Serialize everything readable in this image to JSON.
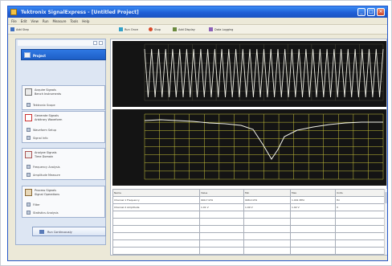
{
  "window": {
    "title": "Tektronix SignalExpress - [Untitled Project]"
  },
  "menu": [
    "File",
    "Edit",
    "View",
    "Run",
    "Measure",
    "Tools",
    "Help"
  ],
  "toolbar": [
    {
      "label": "Add Step",
      "icon": "add-step-icon"
    },
    {
      "label": "Run Once",
      "icon": "run-once-icon"
    },
    {
      "label": "Stop",
      "icon": "stop-icon"
    },
    {
      "label": "Add Display",
      "icon": "add-display-icon"
    },
    {
      "label": "Data Logging",
      "icon": "data-logging-icon"
    }
  ],
  "sidebar": {
    "active_item": "Project",
    "groups": [
      {
        "title": "Acquire Signals",
        "subtitle": "Bench Instruments",
        "items": [
          "Tektronix Scope"
        ]
      },
      {
        "title": "Generate Signals",
        "subtitle": "Arbitrary Waveform",
        "items": [
          "Waveform Setup",
          "Signal Info"
        ]
      },
      {
        "title": "Analyze Signals",
        "subtitle": "Time Domain",
        "items": [
          "Frequency Analysis",
          "Amplitude Measure"
        ]
      },
      {
        "title": "Process Signals",
        "subtitle": "Signal Operations",
        "items": [
          "Filter",
          "Statistics Analysis"
        ]
      }
    ],
    "bottom_button": "Run Continuously"
  },
  "table": {
    "headers": [
      "Name",
      "Value",
      "Min",
      "Max",
      "Units"
    ],
    "rows": [
      [
        "Channel 1 Frequency",
        "999.7 kHz",
        "998.4 kHz",
        "1.001 MHz",
        "Hz"
      ],
      [
        "Channel 2 Amplitude",
        "1.01 V",
        "1.00 V",
        "1.02 V",
        "V"
      ],
      [
        "",
        "",
        "",
        "",
        ""
      ],
      [
        "",
        "",
        "",
        "",
        ""
      ],
      [
        "",
        "",
        "",
        "",
        ""
      ],
      [
        "",
        "",
        "",
        "",
        ""
      ],
      [
        "",
        "",
        "",
        "",
        ""
      ],
      [
        "",
        "",
        "",
        "",
        ""
      ]
    ]
  },
  "colors": {
    "plot_bg": "#141414",
    "plot_grid_top": "#4a4a3a",
    "plot_grid_bottom": "#c8c23a",
    "trace": "#f2f2e8"
  }
}
